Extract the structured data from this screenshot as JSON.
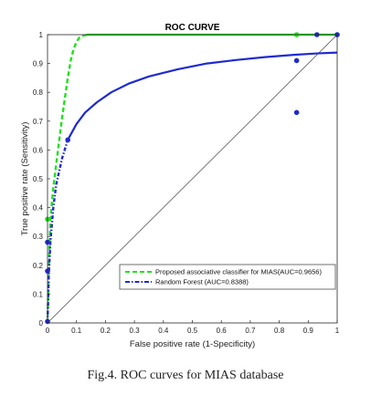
{
  "chart_data": {
    "type": "line",
    "title": "ROC CURVE",
    "xlabel": "False positive rate (1-Specificity)",
    "ylabel": "True positive rate (Sensitivity)",
    "xlim": [
      0,
      1
    ],
    "ylim": [
      0,
      1
    ],
    "x_ticks": [
      "0",
      "0.1",
      "0.2",
      "0.3",
      "0.4",
      "0.5",
      "0.6",
      "0.7",
      "0.8",
      "0.9",
      "1"
    ],
    "y_ticks": [
      "0",
      "0.1",
      "0.2",
      "0.3",
      "0.4",
      "0.5",
      "0.6",
      "0.7",
      "0.8",
      "0.9",
      "1"
    ],
    "grid": false,
    "legend_position": "bottom-right",
    "series": [
      {
        "name": "Proposed associative classifier for MIAS(AUC=0.9656)",
        "color": "#22e01e",
        "line_style": "dashed-then-solid",
        "x": [
          0,
          0.005,
          0.01,
          0.02,
          0.03,
          0.04,
          0.05,
          0.06,
          0.07,
          0.08,
          0.09,
          0.1,
          0.11,
          0.12,
          0.13,
          0.14,
          0.16,
          0.2,
          0.3,
          0.5,
          0.7,
          0.9,
          1
        ],
        "y": [
          0,
          0.2,
          0.36,
          0.47,
          0.55,
          0.63,
          0.71,
          0.78,
          0.85,
          0.91,
          0.95,
          0.975,
          0.99,
          0.995,
          0.998,
          1.0,
          1.0,
          1.0,
          1.0,
          1.0,
          1.0,
          1.0,
          1.0
        ],
        "points": [
          [
            0,
            0.36
          ],
          [
            0.86,
            1.0
          ],
          [
            1.0,
            1.0
          ]
        ]
      },
      {
        "name": "Random Forest (AUC=0.8388)",
        "color": "#1f2bd0",
        "line_style": "dashed-then-solid",
        "x": [
          0,
          0.005,
          0.01,
          0.02,
          0.03,
          0.05,
          0.07,
          0.1,
          0.13,
          0.17,
          0.22,
          0.28,
          0.35,
          0.45,
          0.55,
          0.65,
          0.75,
          0.85,
          0.93,
          1
        ],
        "y": [
          0,
          0.18,
          0.28,
          0.4,
          0.48,
          0.57,
          0.635,
          0.69,
          0.73,
          0.765,
          0.8,
          0.83,
          0.855,
          0.88,
          0.9,
          0.912,
          0.922,
          0.93,
          0.935,
          0.938
        ],
        "points": [
          [
            0,
            0.005
          ],
          [
            0,
            0.18
          ],
          [
            0,
            0.28
          ],
          [
            0.07,
            0.635
          ],
          [
            0.86,
            0.91
          ],
          [
            0.86,
            0.73
          ],
          [
            0.93,
            1.0
          ],
          [
            1.0,
            1.0
          ]
        ]
      },
      {
        "name": "",
        "color": "#444444",
        "line_style": "solid-thin",
        "x": [
          0,
          1
        ],
        "y": [
          0,
          1
        ]
      }
    ]
  },
  "caption": "Fig.4. ROC curves for MIAS database"
}
